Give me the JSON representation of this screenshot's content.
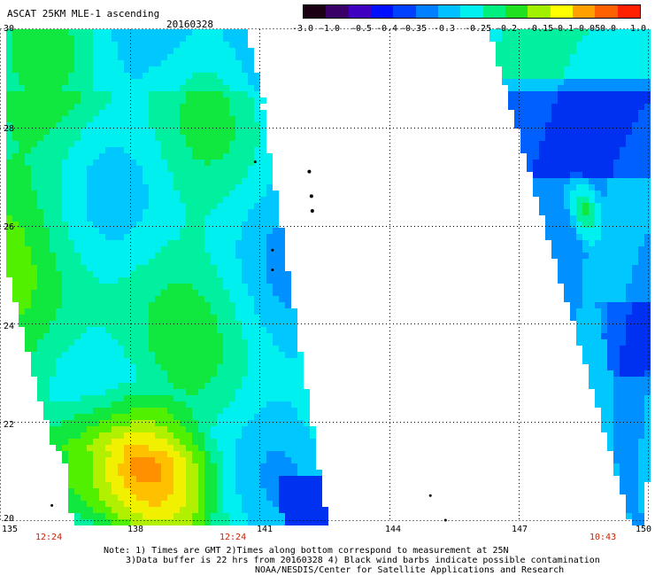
{
  "title": "ASCAT 25KM MLE-1 ascending",
  "date": "20160328",
  "colorbar": {
    "labels": [
      "-3.0",
      "-1.0",
      "-0.5",
      "-0.4",
      "-0.35",
      "-0.3",
      "-0.25",
      "-0.2",
      "-0.15",
      "-0.1",
      "-0.05",
      "0.0",
      "1.0"
    ],
    "colors": [
      "#1a0010",
      "#3a0068",
      "#4000c0",
      "#0010ff",
      "#0040ff",
      "#0080ff",
      "#00c0ff",
      "#00f0f0",
      "#00f080",
      "#20e020",
      "#a0f000",
      "#ffff00",
      "#ffa000",
      "#ff6000",
      "#ff2000"
    ]
  },
  "y_axis": [
    "30",
    "28",
    "26",
    "24",
    "22",
    "20"
  ],
  "x_axis": [
    "135",
    "138",
    "141",
    "144",
    "147",
    "150"
  ],
  "times": [
    "12:24",
    "12:24",
    "10:43"
  ],
  "note_lines": [
    "Note: 1) Times are GMT 2)Times along bottom correspond to measurement at 25N",
    "3)Data buffer is 22 hrs from 20160328 4) Black wind barbs indicate possible contamination",
    "NOAA/NESDIS/Center for Satellite Applications and Research"
  ],
  "map_data": {
    "lon_range": [
      135,
      150
    ],
    "lat_range": [
      20,
      30
    ],
    "gridlines": "dotted"
  }
}
